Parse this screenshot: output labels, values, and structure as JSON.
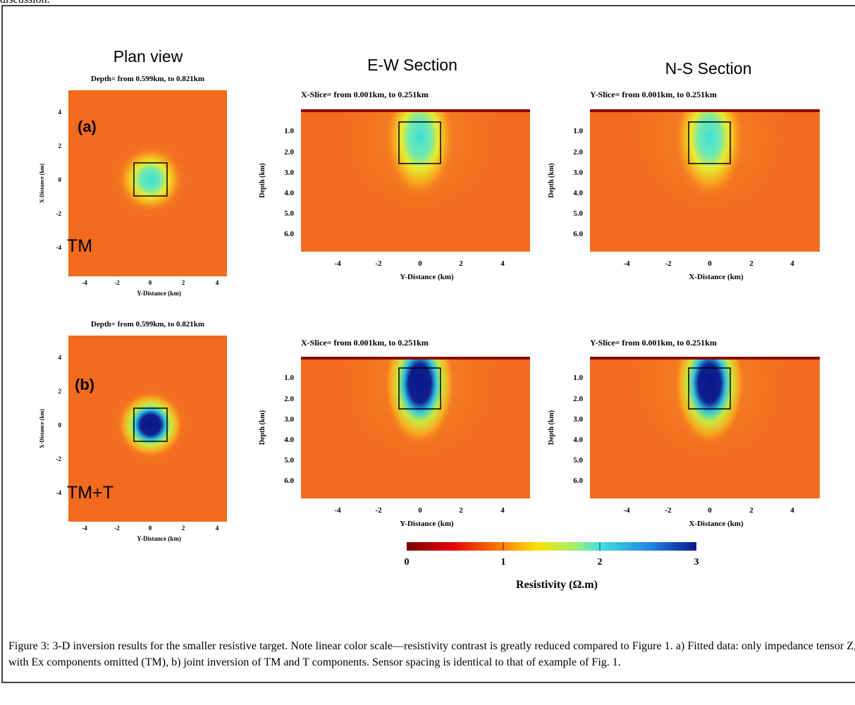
{
  "header_fragment": "discussion.",
  "figure": {
    "panels": [
      {
        "title": "Plan view",
        "subtitle": "Depth= from 0.599km, to 0.821km",
        "y_label": "X-Distance (km)",
        "x_label": "Y-Distance (km)",
        "yticks": [
          "4",
          "2",
          "0",
          "-2",
          "-4"
        ],
        "xticks": [
          "-4",
          "-2",
          "0",
          "2",
          "4"
        ],
        "tag": "(a)",
        "mode": "TM"
      },
      {
        "title": "E-W Section",
        "subtitle": "X-Slice= from 0.001km, to 0.251km",
        "y_label": "Depth (km)",
        "x_label": "Y-Distance (km)",
        "yticks": [
          "1.0",
          "2.0",
          "3.0",
          "4.0",
          "5.0",
          "6.0"
        ],
        "xticks": [
          "-4",
          "-2",
          "0",
          "2",
          "4"
        ]
      },
      {
        "title": "N-S Section",
        "subtitle": "Y-Slice= from 0.001km, to 0.251km",
        "y_label": "Depth (km)",
        "x_label": "X-Distance (km)",
        "yticks": [
          "1.0",
          "2.0",
          "3.0",
          "4.0",
          "5.0",
          "6.0"
        ],
        "xticks": [
          "-4",
          "-2",
          "0",
          "2",
          "4"
        ]
      },
      {
        "subtitle": "Depth= from 0.599km, to 0.821km",
        "y_label": "X-Distance (km)",
        "x_label": "Y-Distance (km)",
        "yticks": [
          "4",
          "2",
          "0",
          "-2",
          "-4"
        ],
        "xticks": [
          "-4",
          "-2",
          "0",
          "2",
          "4"
        ],
        "tag": "(b)",
        "mode": "TM+T"
      },
      {
        "subtitle": "X-Slice= from 0.001km, to 0.251km",
        "y_label": "Depth (km)",
        "x_label": "Y-Distance (km)",
        "yticks": [
          "1.0",
          "2.0",
          "3.0",
          "4.0",
          "5.0",
          "6.0"
        ],
        "xticks": [
          "-4",
          "-2",
          "0",
          "2",
          "4"
        ]
      },
      {
        "subtitle": "Y-Slice= from 0.001km, to 0.251km",
        "y_label": "Depth (km)",
        "x_label": "X-Distance (km)",
        "yticks": [
          "1.0",
          "2.0",
          "3.0",
          "4.0",
          "5.0",
          "6.0"
        ],
        "xticks": [
          "-4",
          "-2",
          "0",
          "2",
          "4"
        ]
      }
    ],
    "colorbar": {
      "ticks": [
        "0",
        "1",
        "2",
        "3"
      ],
      "label": "Resistivity (Ω.m)"
    }
  },
  "caption": "Figure 3: 3-D inversion results for the smaller resistive target.   Note linear color scale—resistivity contrast is greatly reduced compared to Figure 1. a) Fitted data: only impedance tensor Z, with Ex components omitted (TM), b) joint inversion of TM and T components.  Sensor spacing is identical to that of example of Fig. 1."
}
